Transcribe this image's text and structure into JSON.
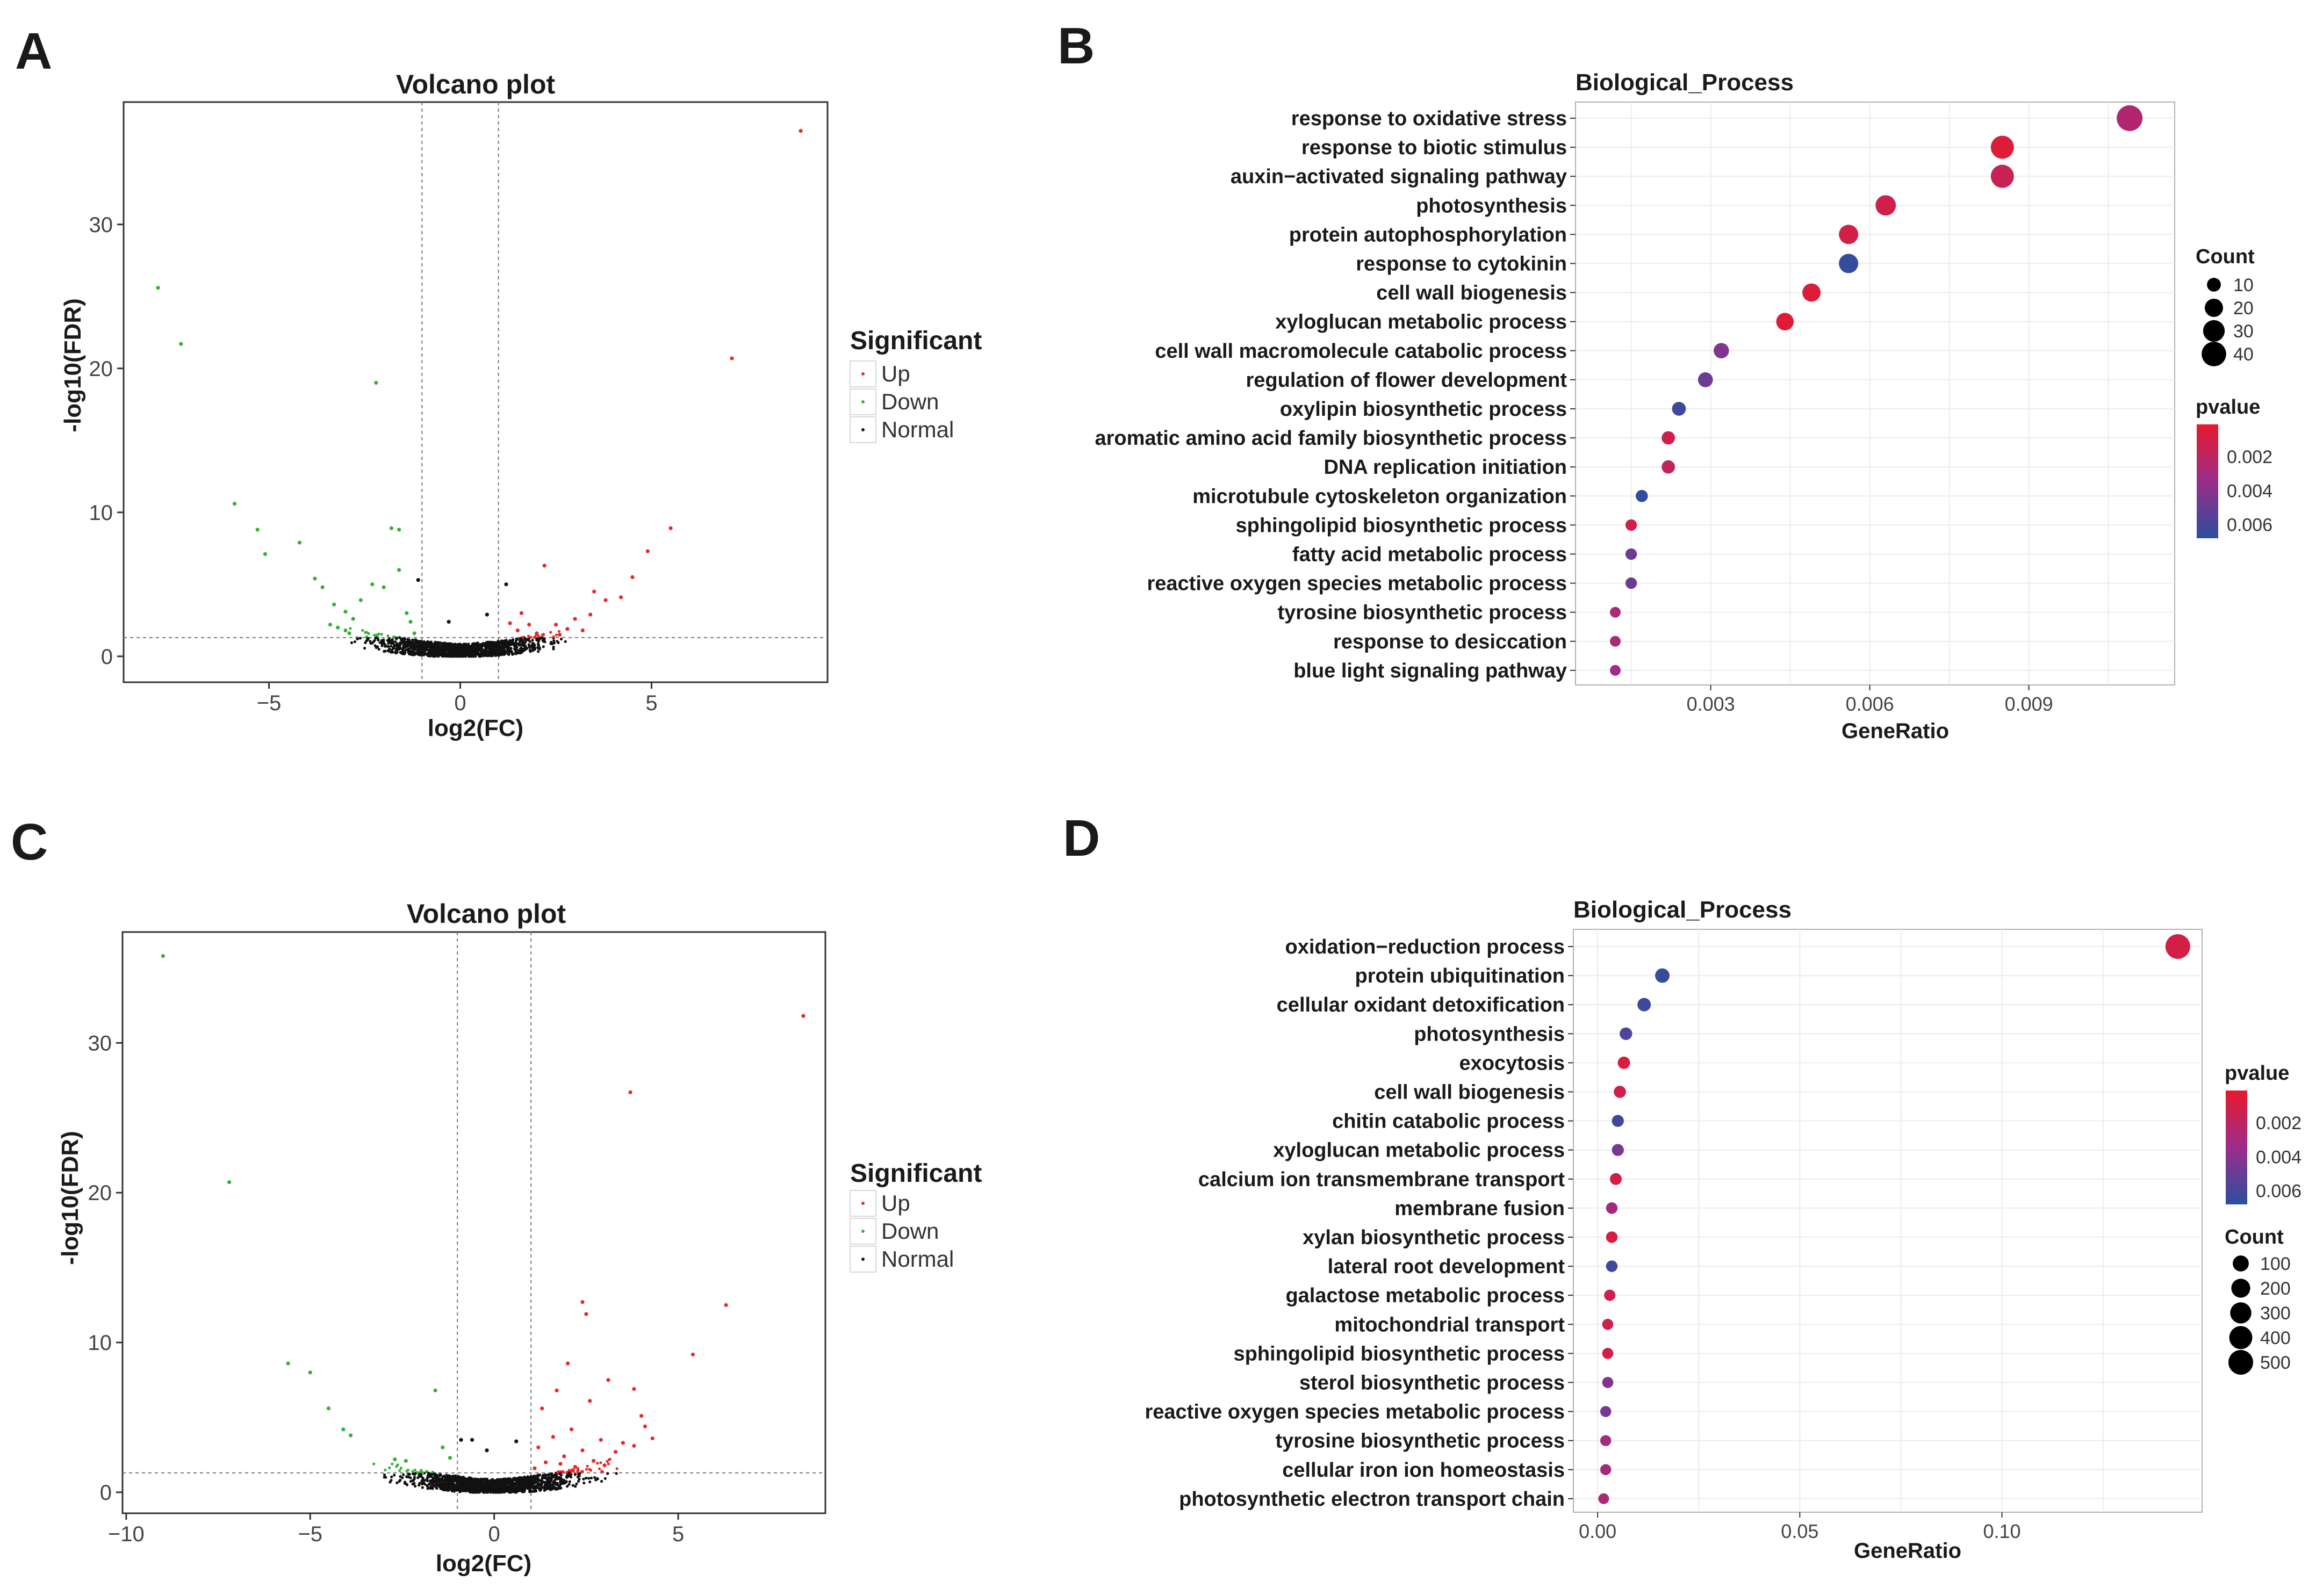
{
  "panels": {
    "A": "A",
    "B": "B",
    "C": "C",
    "D": "D"
  },
  "colors": {
    "up": "#e8282b",
    "down": "#32b32f",
    "normal": "#111111",
    "low_p": "#e8192c",
    "high_p": "#2a4fa0"
  },
  "chart_data": [
    {
      "id": "A",
      "type": "scatter",
      "title": "Volcano plot",
      "xlabel": "log2(FC)",
      "ylabel": "-log10(FDR)",
      "xlim": [
        -8.8,
        9.6
      ],
      "ylim": [
        -1.8,
        38.5
      ],
      "xticks": [
        -5,
        0,
        5
      ],
      "yticks": [
        0,
        10,
        20,
        30
      ],
      "thresholds": {
        "x": [
          -1,
          1
        ],
        "y": 1.3
      },
      "legend": {
        "title": "Significant",
        "items": [
          "Up",
          "Down",
          "Normal"
        ]
      },
      "highlight_points": [
        {
          "x": 8.9,
          "y": 36.5,
          "s": "Up"
        },
        {
          "x": 7.1,
          "y": 20.7,
          "s": "Up"
        },
        {
          "x": 5.5,
          "y": 8.9,
          "s": "Up"
        },
        {
          "x": 4.9,
          "y": 7.3,
          "s": "Up"
        },
        {
          "x": 4.5,
          "y": 5.5,
          "s": "Up"
        },
        {
          "x": 3.5,
          "y": 4.5,
          "s": "Up"
        },
        {
          "x": 3.8,
          "y": 3.9,
          "s": "Up"
        },
        {
          "x": 4.2,
          "y": 4.1,
          "s": "Up"
        },
        {
          "x": 2.2,
          "y": 6.3,
          "s": "Up"
        },
        {
          "x": 3.4,
          "y": 2.9,
          "s": "Up"
        },
        {
          "x": 3.0,
          "y": 2.6,
          "s": "Up"
        },
        {
          "x": 2.5,
          "y": 2.2,
          "s": "Up"
        },
        {
          "x": 1.8,
          "y": 2.2,
          "s": "Up"
        },
        {
          "x": 1.5,
          "y": 1.8,
          "s": "Up"
        },
        {
          "x": 2.8,
          "y": 1.9,
          "s": "Up"
        },
        {
          "x": 2.0,
          "y": 1.6,
          "s": "Up"
        },
        {
          "x": 1.6,
          "y": 3.0,
          "s": "Up"
        },
        {
          "x": 1.3,
          "y": 2.3,
          "s": "Up"
        },
        {
          "x": 3.2,
          "y": 1.8,
          "s": "Up"
        },
        {
          "x": 2.6,
          "y": 1.5,
          "s": "Up"
        },
        {
          "x": -7.9,
          "y": 25.6,
          "s": "Down"
        },
        {
          "x": -7.3,
          "y": 21.7,
          "s": "Down"
        },
        {
          "x": -5.9,
          "y": 10.6,
          "s": "Down"
        },
        {
          "x": -5.3,
          "y": 8.8,
          "s": "Down"
        },
        {
          "x": -5.1,
          "y": 7.1,
          "s": "Down"
        },
        {
          "x": -4.2,
          "y": 7.9,
          "s": "Down"
        },
        {
          "x": -2.2,
          "y": 19.0,
          "s": "Down"
        },
        {
          "x": -1.8,
          "y": 8.9,
          "s": "Down"
        },
        {
          "x": -1.6,
          "y": 8.8,
          "s": "Down"
        },
        {
          "x": -3.8,
          "y": 5.4,
          "s": "Down"
        },
        {
          "x": -3.6,
          "y": 4.8,
          "s": "Down"
        },
        {
          "x": -3.3,
          "y": 3.6,
          "s": "Down"
        },
        {
          "x": -3.0,
          "y": 3.1,
          "s": "Down"
        },
        {
          "x": -2.6,
          "y": 3.9,
          "s": "Down"
        },
        {
          "x": -2.0,
          "y": 4.8,
          "s": "Down"
        },
        {
          "x": -1.4,
          "y": 3.0,
          "s": "Down"
        },
        {
          "x": -2.8,
          "y": 2.6,
          "s": "Down"
        },
        {
          "x": -1.6,
          "y": 6.0,
          "s": "Down"
        },
        {
          "x": -2.3,
          "y": 5.0,
          "s": "Down"
        },
        {
          "x": -3.4,
          "y": 2.2,
          "s": "Down"
        },
        {
          "x": -3.2,
          "y": 2.0,
          "s": "Down"
        },
        {
          "x": -3.0,
          "y": 1.8,
          "s": "Down"
        },
        {
          "x": -2.9,
          "y": 1.6,
          "s": "Down"
        },
        {
          "x": -1.3,
          "y": 2.4,
          "s": "Down"
        },
        {
          "x": -1.2,
          "y": 1.6,
          "s": "Down"
        },
        {
          "x": -1.1,
          "y": 5.3,
          "s": "Normal"
        },
        {
          "x": 1.2,
          "y": 5.0,
          "s": "Normal"
        },
        {
          "x": -0.3,
          "y": 2.4,
          "s": "Normal"
        },
        {
          "x": 0.7,
          "y": 2.9,
          "s": "Normal"
        }
      ]
    },
    {
      "id": "B",
      "type": "scatter",
      "title": "Biological_Process",
      "xlabel": "GeneRatio",
      "xlim": [
        0.00045,
        0.01175
      ],
      "xticks": [
        0.003,
        0.006,
        0.009
      ],
      "xtick_labels": [
        "0.003",
        "0.006",
        "0.009"
      ],
      "legend_count": {
        "title": "Count",
        "items": [
          10,
          20,
          30,
          40
        ]
      },
      "legend_p": {
        "title": "pvalue",
        "items": [
          "0.002",
          "0.004",
          "0.006"
        ],
        "range": [
          0.0001,
          0.0068
        ]
      },
      "categories": [
        "response to oxidative stress",
        "response to biotic stimulus",
        "auxin−activated signaling pathway",
        "photosynthesis",
        "protein autophosphorylation",
        "response to cytokinin",
        "cell wall biogenesis",
        "xyloglucan metabolic process",
        "cell wall macromolecule catabolic process",
        "regulation of flower development",
        "oxylipin biosynthetic process",
        "aromatic amino acid family biosynthetic process",
        "DNA replication initiation",
        "microtubule cytoskeleton organization",
        "sphingolipid biosynthetic process",
        "fatty acid metabolic process",
        "reactive oxygen species metabolic process",
        "tyrosine biosynthetic process",
        "response to desiccation",
        "blue light signaling pathway"
      ],
      "gene_ratio": [
        0.0109,
        0.0085,
        0.0085,
        0.0063,
        0.0056,
        0.0056,
        0.0049,
        0.0044,
        0.0032,
        0.0029,
        0.0024,
        0.0022,
        0.0022,
        0.0017,
        0.0015,
        0.0015,
        0.0015,
        0.0012,
        0.0012,
        0.0012
      ],
      "count": [
        45,
        35,
        35,
        26,
        23,
        23,
        20,
        18,
        13,
        12,
        10,
        9,
        9,
        7,
        6,
        6,
        6,
        5,
        5,
        5
      ],
      "pvalue": [
        0.0025,
        0.0006,
        0.0015,
        0.0012,
        0.001,
        0.0065,
        0.0006,
        0.0005,
        0.0042,
        0.0048,
        0.0062,
        0.0012,
        0.0018,
        0.0066,
        0.001,
        0.0048,
        0.0048,
        0.0028,
        0.0028,
        0.0032
      ]
    },
    {
      "id": "C",
      "type": "scatter",
      "title": "Volcano plot",
      "xlabel": "log2(FC)",
      "ylabel": "-log10(FDR)",
      "xlim": [
        -10.1,
        9.0
      ],
      "ylim": [
        -1.4,
        37.4
      ],
      "xticks": [
        -10,
        -5,
        0,
        5
      ],
      "xtick_labels": [
        "−10",
        "−5",
        "0",
        "5"
      ],
      "yticks": [
        0,
        10,
        20,
        30
      ],
      "thresholds": {
        "x": [
          -1,
          1
        ],
        "y": 1.3
      },
      "legend": {
        "title": "Significant",
        "items": [
          "Up",
          "Down",
          "Normal"
        ]
      },
      "highlight_points": [
        {
          "x": 8.4,
          "y": 31.8,
          "s": "Up"
        },
        {
          "x": 3.7,
          "y": 26.7,
          "s": "Up"
        },
        {
          "x": 6.3,
          "y": 12.5,
          "s": "Up"
        },
        {
          "x": 2.4,
          "y": 12.7,
          "s": "Up"
        },
        {
          "x": 2.5,
          "y": 11.9,
          "s": "Up"
        },
        {
          "x": 5.4,
          "y": 9.2,
          "s": "Up"
        },
        {
          "x": 2.0,
          "y": 8.6,
          "s": "Up"
        },
        {
          "x": 3.1,
          "y": 7.5,
          "s": "Up"
        },
        {
          "x": 3.8,
          "y": 6.9,
          "s": "Up"
        },
        {
          "x": 2.6,
          "y": 6.1,
          "s": "Up"
        },
        {
          "x": 1.7,
          "y": 6.8,
          "s": "Up"
        },
        {
          "x": 1.3,
          "y": 5.6,
          "s": "Up"
        },
        {
          "x": 4.0,
          "y": 5.1,
          "s": "Up"
        },
        {
          "x": 4.1,
          "y": 4.4,
          "s": "Up"
        },
        {
          "x": 2.1,
          "y": 4.2,
          "s": "Up"
        },
        {
          "x": 1.6,
          "y": 3.7,
          "s": "Up"
        },
        {
          "x": 2.9,
          "y": 3.5,
          "s": "Up"
        },
        {
          "x": 3.5,
          "y": 3.3,
          "s": "Up"
        },
        {
          "x": 1.2,
          "y": 3.0,
          "s": "Up"
        },
        {
          "x": 2.4,
          "y": 2.8,
          "s": "Up"
        },
        {
          "x": 3.8,
          "y": 3.1,
          "s": "Up"
        },
        {
          "x": 1.9,
          "y": 2.4,
          "s": "Up"
        },
        {
          "x": 3.3,
          "y": 2.7,
          "s": "Up"
        },
        {
          "x": 2.7,
          "y": 2.1,
          "s": "Up"
        },
        {
          "x": 1.4,
          "y": 2.0,
          "s": "Up"
        },
        {
          "x": 3.0,
          "y": 1.8,
          "s": "Up"
        },
        {
          "x": 2.2,
          "y": 1.7,
          "s": "Up"
        },
        {
          "x": 1.1,
          "y": 1.6,
          "s": "Up"
        },
        {
          "x": 1.8,
          "y": 1.9,
          "s": "Up"
        },
        {
          "x": 4.3,
          "y": 3.6,
          "s": "Up"
        },
        {
          "x": -9.0,
          "y": 35.8,
          "s": "Down"
        },
        {
          "x": -7.2,
          "y": 20.7,
          "s": "Down"
        },
        {
          "x": -5.6,
          "y": 8.6,
          "s": "Down"
        },
        {
          "x": -5.0,
          "y": 8.0,
          "s": "Down"
        },
        {
          "x": -4.5,
          "y": 5.6,
          "s": "Down"
        },
        {
          "x": -4.1,
          "y": 4.2,
          "s": "Down"
        },
        {
          "x": -3.9,
          "y": 3.8,
          "s": "Down"
        },
        {
          "x": -1.6,
          "y": 6.8,
          "s": "Down"
        },
        {
          "x": -2.7,
          "y": 2.2,
          "s": "Down"
        },
        {
          "x": -2.4,
          "y": 2.1,
          "s": "Down"
        },
        {
          "x": -1.4,
          "y": 3.0,
          "s": "Down"
        },
        {
          "x": -1.2,
          "y": 2.3,
          "s": "Down"
        },
        {
          "x": -0.9,
          "y": 3.5,
          "s": "Normal"
        },
        {
          "x": -0.6,
          "y": 3.5,
          "s": "Normal"
        },
        {
          "x": 0.6,
          "y": 3.4,
          "s": "Normal"
        },
        {
          "x": -0.2,
          "y": 2.8,
          "s": "Normal"
        }
      ]
    },
    {
      "id": "D",
      "type": "scatter",
      "title": "Biological_Process",
      "xlabel": "GeneRatio",
      "xlim": [
        -0.006,
        0.1495
      ],
      "xticks": [
        0.0,
        0.05,
        0.1
      ],
      "xtick_labels": [
        "0.00",
        "0.05",
        "0.10"
      ],
      "legend_p": {
        "title": "pvalue",
        "items": [
          "0.002",
          "0.004",
          "0.006"
        ],
        "range": [
          0.0001,
          0.0068
        ]
      },
      "legend_count": {
        "title": "Count",
        "items": [
          100,
          200,
          300,
          400,
          500
        ]
      },
      "categories": [
        "oxidation−reduction process",
        "protein ubiquitination",
        "cellular oxidant detoxification",
        "photosynthesis",
        "exocytosis",
        "cell wall biogenesis",
        "chitin catabolic process",
        "xyloglucan metabolic process",
        "calcium ion transmembrane transport",
        "membrane fusion",
        "xylan biosynthetic process",
        "lateral root development",
        "galactose metabolic process",
        "mitochondrial transport",
        "sphingolipid biosynthetic process",
        "sterol biosynthetic process",
        "reactive oxygen species metabolic process",
        "tyrosine biosynthetic process",
        "cellular iron ion homeostasis",
        "photosynthetic electron transport chain"
      ],
      "gene_ratio": [
        0.1435,
        0.016,
        0.0115,
        0.007,
        0.0065,
        0.0055,
        0.005,
        0.005,
        0.0045,
        0.0035,
        0.0035,
        0.0035,
        0.003,
        0.0025,
        0.0025,
        0.0025,
        0.002,
        0.002,
        0.002,
        0.0015
      ],
      "count": [
        500,
        60,
        40,
        25,
        22,
        20,
        18,
        18,
        16,
        13,
        13,
        13,
        11,
        9,
        9,
        9,
        8,
        8,
        8,
        6
      ],
      "pvalue": [
        0.001,
        0.0064,
        0.0062,
        0.0058,
        0.0008,
        0.0012,
        0.0062,
        0.0045,
        0.001,
        0.003,
        0.0008,
        0.0062,
        0.0012,
        0.0012,
        0.0012,
        0.0042,
        0.0045,
        0.0032,
        0.003,
        0.0028
      ]
    }
  ]
}
